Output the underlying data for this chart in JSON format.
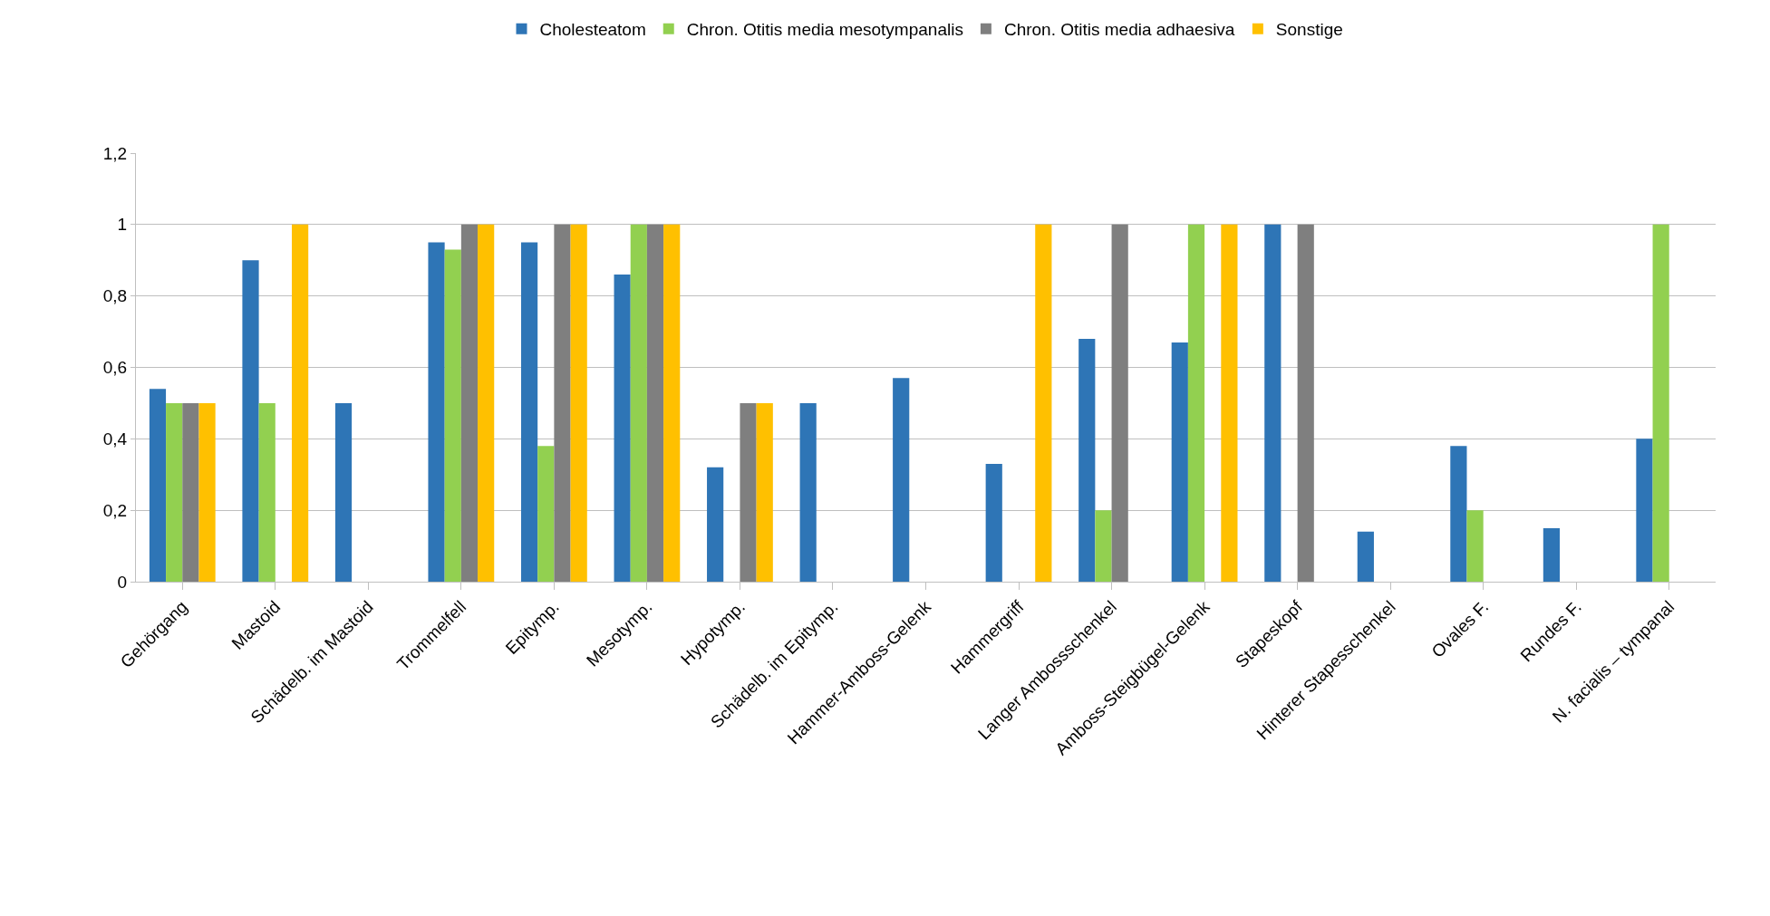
{
  "chart_data": {
    "type": "bar",
    "categories": [
      "Gehörgang",
      "Mastoid",
      "Schädelb. im Mastoid",
      "Trommelfell",
      "Epitymp.",
      "Mesotymp.",
      "Hypotymp.",
      "Schädelb. im Epitymp.",
      "Hammer-Amboss-Gelenk",
      "Hammergriff",
      "Langer Ambossschenkel",
      "Amboss-Steigbügel-Gelenk",
      "Stapeskopf",
      "Hinterer Stapesschenkel",
      "Ovales F.",
      "Rundes F.",
      "N. facialis – tympanal"
    ],
    "series": [
      {
        "name": "Cholesteatom",
        "color": "#2e75b6",
        "values": [
          0.54,
          0.9,
          0.5,
          0.95,
          0.95,
          0.86,
          0.32,
          0.5,
          0.57,
          0.33,
          0.68,
          0.67,
          1,
          0.14,
          0.38,
          0.15,
          0.4
        ]
      },
      {
        "name": "Chron. Otitis media mesotympanalis",
        "color": "#92d050",
        "values": [
          0.5,
          0.5,
          null,
          0.93,
          0.38,
          1,
          null,
          null,
          null,
          null,
          0.2,
          1,
          null,
          null,
          0.2,
          null,
          1
        ]
      },
      {
        "name": "Chron. Otitis media adhaesiva",
        "color": "#7f7f7f",
        "values": [
          0.5,
          null,
          null,
          1,
          1,
          1,
          0.5,
          null,
          null,
          null,
          1,
          null,
          1,
          null,
          null,
          null,
          null
        ]
      },
      {
        "name": "Sonstige",
        "color": "#ffc000",
        "values": [
          0.5,
          1,
          null,
          1,
          1,
          1,
          0.5,
          null,
          null,
          1,
          null,
          1,
          null,
          null,
          null,
          null,
          null
        ]
      }
    ],
    "ylim": [
      0,
      1.2
    ],
    "yticks": [
      0,
      {
        "value": 0.2,
        "label": "0,2"
      },
      {
        "value": 0.4,
        "label": "0,4"
      },
      {
        "value": 0.6,
        "label": "0,6"
      },
      {
        "value": 0.8,
        "label": "0,8"
      },
      1,
      {
        "value": 1.2,
        "label": "1,2"
      }
    ],
    "grid": "y",
    "legend": "top"
  }
}
